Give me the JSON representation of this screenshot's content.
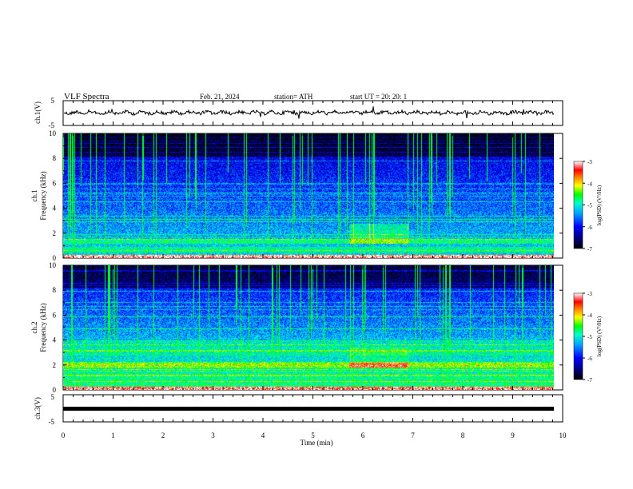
{
  "header": {
    "title": "VLF  Spectra",
    "date": "Feb. 21, 2024",
    "station": "station= ATH",
    "start": "start  UT  =    20: 20: 1"
  },
  "chart_data": [
    {
      "type": "line",
      "name": "ch1-waveform",
      "ylabel": "ch.1(V)",
      "ylim": [
        -5,
        5
      ],
      "yticks": [
        "5",
        "-5"
      ],
      "xlim": [
        0,
        10
      ],
      "line_color": "#000000"
    },
    {
      "type": "heatmap",
      "name": "ch1-spectrogram",
      "ylabel": "ch.1\nFrequency  (kHz)",
      "ylim": [
        0,
        10
      ],
      "yticks": [
        "0",
        "2",
        "4",
        "6",
        "8",
        "10"
      ],
      "xlim": [
        0,
        9.8
      ],
      "colorbar": {
        "label": "log(PSD) (V²/Hz)",
        "range": [
          -7,
          -3
        ],
        "ticks": [
          "-3",
          "-4",
          "-5",
          "-6",
          "-7"
        ]
      }
    },
    {
      "type": "heatmap",
      "name": "ch2-spectrogram",
      "ylabel": "ch.2\nFrequency  (kHz)",
      "ylim": [
        0,
        10
      ],
      "yticks": [
        "0",
        "2",
        "4",
        "6",
        "8",
        "10"
      ],
      "xlim": [
        0,
        9.8
      ],
      "colorbar": {
        "label": "log(PSD) (V²/Hz)",
        "range": [
          -7,
          -3
        ],
        "ticks": [
          "-3",
          "-4",
          "-5",
          "-6",
          "-7"
        ]
      }
    },
    {
      "type": "line",
      "name": "ch3-waveform",
      "ylabel": "ch.3(V)",
      "ylim": [
        -5,
        5
      ],
      "yticks": [
        "5",
        "-5"
      ],
      "xlim": [
        0,
        10
      ],
      "line_color": "#000000"
    }
  ],
  "xaxis": {
    "label": "Time  (min)",
    "range": [
      0,
      10
    ],
    "ticks": [
      "0",
      "1",
      "2",
      "3",
      "4",
      "5",
      "6",
      "7",
      "8",
      "9",
      "10"
    ]
  },
  "colors": {
    "scale": [
      "#000000",
      "#0000ff",
      "#00ffff",
      "#00ff00",
      "#ffff00",
      "#ff0000",
      "#ffffff"
    ]
  }
}
